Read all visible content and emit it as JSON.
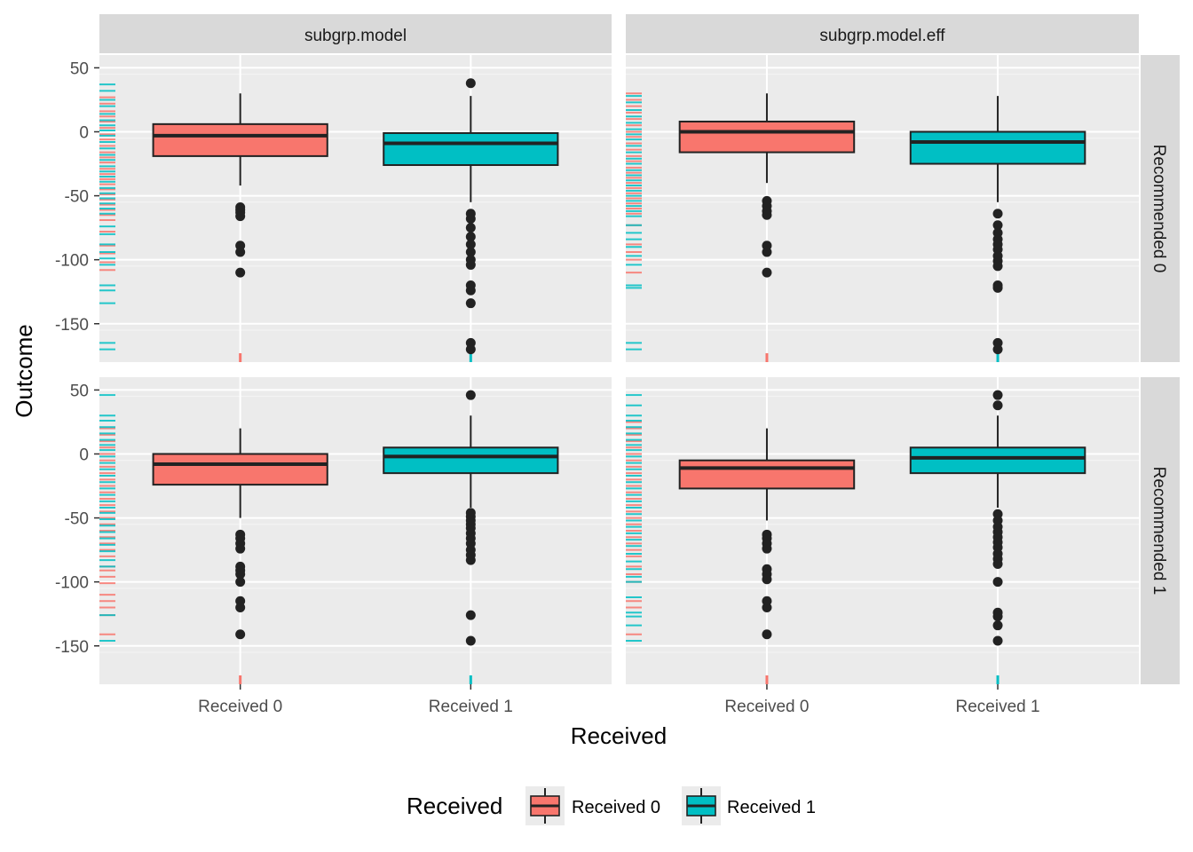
{
  "chart_data": {
    "type": "boxplot",
    "xlabel": "Received",
    "ylabel": "Outcome",
    "ylim": [
      -180,
      60
    ],
    "yticks": [
      50,
      0,
      -50,
      -100,
      -150
    ],
    "categories": [
      "Received 0",
      "Received 1"
    ],
    "colors": {
      "Received 0": "#F8766D",
      "Received 1": "#00BFC4"
    },
    "col_facets": [
      "subgrp.model",
      "subgrp.model.eff"
    ],
    "row_facets": [
      "Recommended 0",
      "Recommended 1"
    ],
    "legend": {
      "title": "Received",
      "position": "bottom",
      "items": [
        "Received 0",
        "Received 1"
      ]
    },
    "panels": [
      {
        "col": "subgrp.model",
        "row": "Recommended 0",
        "boxes": [
          {
            "category": "Received 0",
            "q1": -19,
            "median": -3,
            "q3": 6,
            "whisker_low": -42,
            "whisker_high": 30,
            "outliers": [
              -59,
              -61,
              -63,
              -66,
              -89,
              -94,
              -110
            ]
          },
          {
            "category": "Received 1",
            "q1": -26,
            "median": -9,
            "q3": -1,
            "whisker_low": -55,
            "whisker_high": 28,
            "outliers": [
              38,
              -64,
              -68,
              -75,
              -82,
              -88,
              -94,
              -100,
              -104,
              -120,
              -124,
              -134,
              -165,
              -170
            ]
          }
        ],
        "rug": {
          "Received 0": [
            27,
            22,
            16,
            12,
            8,
            3,
            -2,
            -6,
            -11,
            -16,
            -20,
            -24,
            -29,
            -33,
            -37,
            -41,
            -45,
            -49,
            -53,
            -57,
            -61,
            -65,
            -69,
            -78,
            -89,
            -95,
            -102,
            -108
          ],
          "Received 1": [
            37,
            32,
            25,
            20,
            14,
            9,
            5,
            1,
            -3,
            -8,
            -13,
            -18,
            -22,
            -27,
            -31,
            -35,
            -39,
            -44,
            -48,
            -52,
            -56,
            -60,
            -64,
            -74,
            -80,
            -88,
            -94,
            -99,
            -104,
            -120,
            -124,
            -134,
            -165,
            -170
          ]
        },
        "bottom_rug": {
          "Received 0": -175,
          "Received 1": -175
        }
      },
      {
        "col": "subgrp.model.eff",
        "row": "Recommended 0",
        "boxes": [
          {
            "category": "Received 0",
            "q1": -16,
            "median": 0,
            "q3": 8,
            "whisker_low": -40,
            "whisker_high": 30,
            "outliers": [
              -54,
              -58,
              -62,
              -65,
              -89,
              -94,
              -110
            ]
          },
          {
            "category": "Received 1",
            "q1": -25,
            "median": -8,
            "q3": 0,
            "whisker_low": -55,
            "whisker_high": 28,
            "outliers": [
              -64,
              -73,
              -79,
              -84,
              -88,
              -92,
              -97,
              -101,
              -105,
              -120,
              -122,
              -165,
              -170
            ]
          }
        ],
        "rug": {
          "Received 0": [
            30,
            25,
            20,
            15,
            10,
            5,
            0,
            -4,
            -9,
            -14,
            -19,
            -23,
            -28,
            -32,
            -36,
            -40,
            -44,
            -48,
            -52,
            -56,
            -60,
            -64,
            -73,
            -88,
            -94,
            -100,
            -110
          ],
          "Received 1": [
            28,
            23,
            17,
            12,
            7,
            2,
            -2,
            -6,
            -11,
            -16,
            -21,
            -25,
            -30,
            -34,
            -38,
            -42,
            -46,
            -50,
            -54,
            -58,
            -62,
            -66,
            -73,
            -79,
            -84,
            -90,
            -97,
            -104,
            -120,
            -122,
            -165,
            -170
          ]
        },
        "bottom_rug": {
          "Received 0": -175,
          "Received 1": -175
        }
      },
      {
        "col": "subgrp.model",
        "row": "Recommended 1",
        "boxes": [
          {
            "category": "Received 0",
            "q1": -24,
            "median": -8,
            "q3": 0,
            "whisker_low": -50,
            "whisker_high": 20,
            "outliers": [
              -63,
              -66,
              -70,
              -74,
              -88,
              -91,
              -94,
              -100,
              -115,
              -120,
              -141
            ]
          },
          {
            "category": "Received 1",
            "q1": -15,
            "median": -2,
            "q3": 5,
            "whisker_low": -42,
            "whisker_high": 30,
            "outliers": [
              46,
              -46,
              -49,
              -52,
              -55,
              -58,
              -62,
              -66,
              -70,
              -75,
              -79,
              -83,
              -126,
              -146
            ]
          }
        ],
        "rug": {
          "Received 0": [
            20,
            15,
            10,
            5,
            0,
            -5,
            -10,
            -15,
            -20,
            -25,
            -30,
            -35,
            -40,
            -45,
            -50,
            -55,
            -60,
            -65,
            -70,
            -75,
            -80,
            -88,
            -91,
            -96,
            -101,
            -110,
            -115,
            -120,
            -126,
            -141
          ],
          "Received 1": [
            46,
            30,
            26,
            21,
            16,
            11,
            7,
            3,
            -2,
            -7,
            -12,
            -17,
            -22,
            -27,
            -32,
            -37,
            -42,
            -46,
            -51,
            -56,
            -61,
            -66,
            -71,
            -76,
            -83,
            -88,
            -126,
            -146
          ]
        },
        "bottom_rug": {
          "Received 0": -175,
          "Received 1": -175
        }
      },
      {
        "col": "subgrp.model.eff",
        "row": "Recommended 1",
        "boxes": [
          {
            "category": "Received 0",
            "q1": -27,
            "median": -11,
            "q3": -5,
            "whisker_low": -52,
            "whisker_high": 20,
            "outliers": [
              -63,
              -66,
              -70,
              -74,
              -90,
              -94,
              -98,
              -115,
              -120,
              -141
            ]
          },
          {
            "category": "Received 1",
            "q1": -15,
            "median": -3,
            "q3": 5,
            "whisker_low": -42,
            "whisker_high": 30,
            "outliers": [
              46,
              38,
              -47,
              -52,
              -57,
              -61,
              -65,
              -69,
              -73,
              -78,
              -82,
              -86,
              -100,
              -124,
              -127,
              -134,
              -146
            ]
          }
        ],
        "rug": {
          "Received 0": [
            25,
            20,
            15,
            10,
            5,
            0,
            -5,
            -10,
            -15,
            -20,
            -25,
            -30,
            -35,
            -40,
            -45,
            -50,
            -55,
            -60,
            -65,
            -70,
            -75,
            -80,
            -88,
            -94,
            -100,
            -115,
            -120,
            -141
          ],
          "Received 1": [
            46,
            38,
            30,
            26,
            21,
            16,
            11,
            7,
            3,
            -2,
            -7,
            -12,
            -17,
            -22,
            -27,
            -32,
            -37,
            -42,
            -47,
            -52,
            -57,
            -62,
            -67,
            -72,
            -78,
            -84,
            -90,
            -96,
            -100,
            -112,
            -124,
            -127,
            -134,
            -146
          ]
        },
        "bottom_rug": {
          "Received 0": -175,
          "Received 1": -175
        }
      }
    ]
  }
}
